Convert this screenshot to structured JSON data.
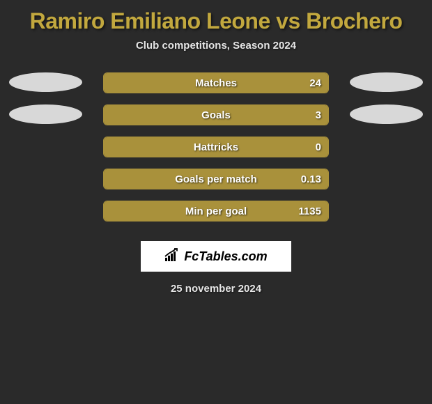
{
  "title": "Ramiro Emiliano Leone vs Brochero",
  "subtitle": "Club competitions, Season 2024",
  "date": "25 november 2024",
  "colors": {
    "background": "#2a2a2a",
    "accent": "#c2a83e",
    "bar_fill": "#a9913b",
    "bar_border": "#a9913b",
    "ellipse": "#d8d8d8",
    "text_light": "#e6e6e6",
    "text_white": "#ffffff"
  },
  "brand": {
    "name": "FcTables.com",
    "icon": "bar-chart-rising-icon",
    "background": "#ffffff",
    "text_color": "#000000"
  },
  "stats": [
    {
      "label": "Matches",
      "left_value": "",
      "right_value": "24",
      "left_fill_pct": 0,
      "right_fill_pct": 100,
      "show_left_ellipse": true,
      "show_right_ellipse": true
    },
    {
      "label": "Goals",
      "left_value": "",
      "right_value": "3",
      "left_fill_pct": 0,
      "right_fill_pct": 100,
      "show_left_ellipse": true,
      "show_right_ellipse": true
    },
    {
      "label": "Hattricks",
      "left_value": "",
      "right_value": "0",
      "left_fill_pct": 0,
      "right_fill_pct": 100,
      "show_left_ellipse": false,
      "show_right_ellipse": false
    },
    {
      "label": "Goals per match",
      "left_value": "",
      "right_value": "0.13",
      "left_fill_pct": 0,
      "right_fill_pct": 100,
      "show_left_ellipse": false,
      "show_right_ellipse": false
    },
    {
      "label": "Min per goal",
      "left_value": "",
      "right_value": "1135",
      "left_fill_pct": 0,
      "right_fill_pct": 100,
      "show_left_ellipse": false,
      "show_right_ellipse": false
    }
  ]
}
